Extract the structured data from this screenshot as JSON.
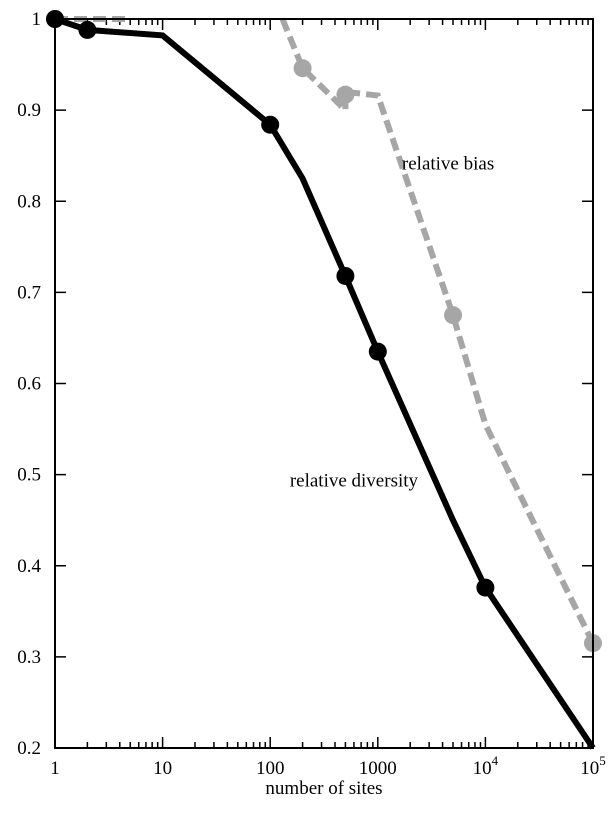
{
  "chart_data": {
    "type": "line",
    "xlabel": "number of sites",
    "ylabel": "",
    "xscale": "log",
    "xlim": [
      1,
      100000
    ],
    "ylim": [
      0.2,
      1.0
    ],
    "grid": false,
    "x_tick_labels": [
      {
        "value": 1,
        "base": "1",
        "exp": ""
      },
      {
        "value": 10,
        "base": "10",
        "exp": ""
      },
      {
        "value": 100,
        "base": "100",
        "exp": ""
      },
      {
        "value": 1000,
        "base": "1000",
        "exp": ""
      },
      {
        "value": 10000,
        "base": "10",
        "exp": "4"
      },
      {
        "value": 100000,
        "base": "10",
        "exp": "5"
      }
    ],
    "y_ticks": [
      0.2,
      0.3,
      0.4,
      0.5,
      0.6,
      0.7,
      0.8,
      0.9,
      1.0
    ],
    "y_tick_labels": [
      "0.2",
      "0.3",
      "0.4",
      "0.5",
      "0.6",
      "0.7",
      "0.8",
      "0.9",
      "1"
    ],
    "series": [
      {
        "name": "relative diversity",
        "color": "#000000",
        "style": "solid",
        "line_x": [
          1,
          2,
          10,
          100,
          200,
          500,
          1000,
          5000,
          10000,
          100000
        ],
        "line_y": [
          1.0,
          0.988,
          0.982,
          0.884,
          0.825,
          0.718,
          0.635,
          0.45,
          0.376,
          0.2
        ],
        "marker_x": [
          1,
          2,
          100,
          500,
          1000,
          10000
        ],
        "marker_y": [
          1.0,
          0.988,
          0.884,
          0.718,
          0.635,
          0.376
        ]
      },
      {
        "name": "relative bias",
        "color": "#a6a6a6",
        "style": "dashed",
        "line_segments": [
          {
            "x": [
              1,
              5
            ],
            "y": [
              1.0,
              1.0
            ]
          },
          {
            "x": [
              130,
              200,
              500,
              500,
              1000,
              5000,
              10000,
              100000
            ],
            "y": [
              1.0,
              0.946,
              0.9,
              0.92,
              0.916,
              0.675,
              0.555,
              0.315
            ]
          }
        ],
        "marker_x": [
          1,
          200,
          500,
          5000,
          100000
        ],
        "marker_y": [
          1.0,
          0.946,
          0.917,
          0.675,
          0.315
        ]
      }
    ],
    "annotations": [
      {
        "text": "relative bias",
        "x": 4500,
        "y": 0.835
      },
      {
        "text": "relative diversity",
        "x": 600,
        "y": 0.487
      }
    ]
  }
}
